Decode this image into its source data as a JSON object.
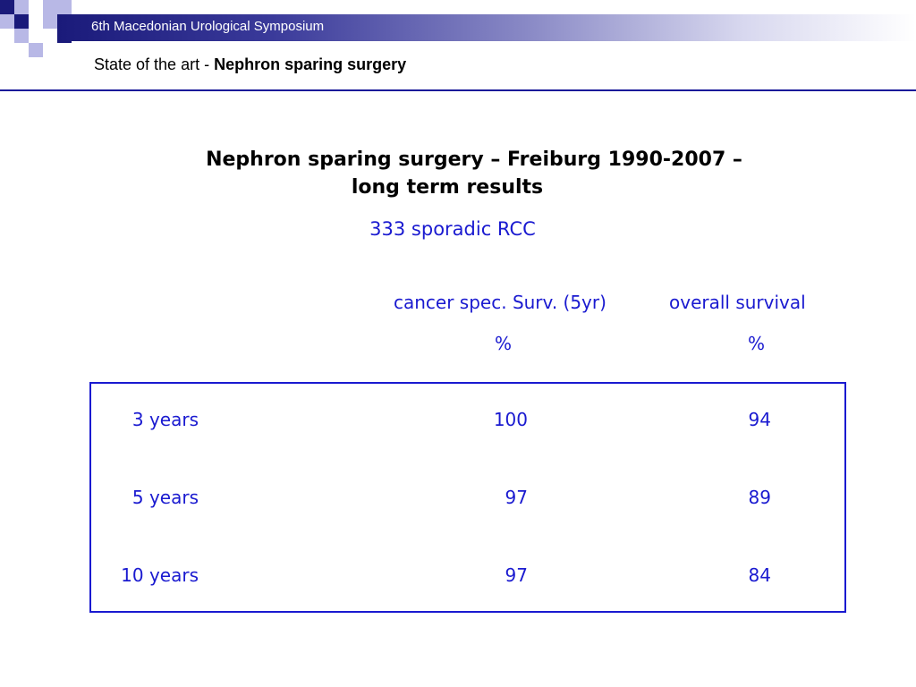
{
  "header": {
    "conference": "6th Macedonian Urological Symposium",
    "title_prefix": "State of the art - ",
    "title_bold": "Nephron sparing surgery"
  },
  "content": {
    "heading_line1": "Nephron sparing surgery – Freiburg 1990-2007 –",
    "heading_line2": "long term results",
    "subtitle": "333 sporadic RCC",
    "columns": [
      {
        "label": "cancer spec. Surv. (5yr)",
        "unit": "%"
      },
      {
        "label": "overall survival",
        "unit": "%"
      }
    ],
    "rows": [
      {
        "label": "3 years",
        "cancer_specific": "100",
        "overall": "94"
      },
      {
        "label": "5 years",
        "cancer_specific": "97",
        "overall": "89"
      },
      {
        "label": "10 years",
        "cancer_specific": "97",
        "overall": "84"
      }
    ]
  },
  "colors": {
    "navy": "#1a1a7a",
    "text_blue": "#1a1ad0",
    "logo_light": "#b8b8e6"
  }
}
